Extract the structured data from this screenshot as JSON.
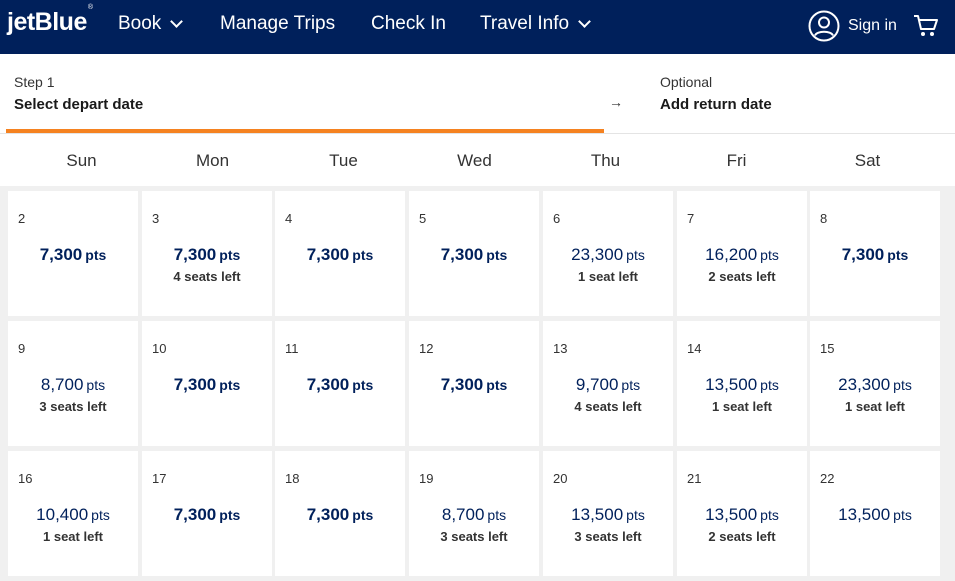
{
  "header": {
    "logo": "jetBlue",
    "logo_mark": "®",
    "nav": [
      {
        "label": "Book",
        "dropdown": true
      },
      {
        "label": "Manage Trips",
        "dropdown": false
      },
      {
        "label": "Check In",
        "dropdown": false
      },
      {
        "label": "Travel Info",
        "dropdown": true
      }
    ],
    "signin_label": "Sign in",
    "user_icon": "user-circle-icon",
    "cart_icon": "cart-icon"
  },
  "steps": {
    "depart_step": "Step 1",
    "depart_title": "Select depart date",
    "arrow": "→",
    "return_step": "Optional",
    "return_title": "Add return date",
    "accent_color": "#f58220"
  },
  "weekdays": [
    "Sun",
    "Mon",
    "Tue",
    "Wed",
    "Thu",
    "Fri",
    "Sat"
  ],
  "unit": "pts",
  "days": [
    {
      "day": "2",
      "price": "7,300",
      "seats": "",
      "best": true
    },
    {
      "day": "3",
      "price": "7,300",
      "seats": "4 seats left",
      "best": true
    },
    {
      "day": "4",
      "price": "7,300",
      "seats": "",
      "best": true
    },
    {
      "day": "5",
      "price": "7,300",
      "seats": "",
      "best": true
    },
    {
      "day": "6",
      "price": "23,300",
      "seats": "1 seat left",
      "best": false
    },
    {
      "day": "7",
      "price": "16,200",
      "seats": "2 seats left",
      "best": false
    },
    {
      "day": "8",
      "price": "7,300",
      "seats": "",
      "best": true
    },
    {
      "day": "9",
      "price": "8,700",
      "seats": "3 seats left",
      "best": false
    },
    {
      "day": "10",
      "price": "7,300",
      "seats": "",
      "best": true
    },
    {
      "day": "11",
      "price": "7,300",
      "seats": "",
      "best": true
    },
    {
      "day": "12",
      "price": "7,300",
      "seats": "",
      "best": true
    },
    {
      "day": "13",
      "price": "9,700",
      "seats": "4 seats left",
      "best": false
    },
    {
      "day": "14",
      "price": "13,500",
      "seats": "1 seat left",
      "best": false
    },
    {
      "day": "15",
      "price": "23,300",
      "seats": "1 seat left",
      "best": false
    },
    {
      "day": "16",
      "price": "10,400",
      "seats": "1 seat left",
      "best": false
    },
    {
      "day": "17",
      "price": "7,300",
      "seats": "",
      "best": true
    },
    {
      "day": "18",
      "price": "7,300",
      "seats": "",
      "best": true
    },
    {
      "day": "19",
      "price": "8,700",
      "seats": "3 seats left",
      "best": false
    },
    {
      "day": "20",
      "price": "13,500",
      "seats": "3 seats left",
      "best": false
    },
    {
      "day": "21",
      "price": "13,500",
      "seats": "2 seats left",
      "best": false
    },
    {
      "day": "22",
      "price": "13,500",
      "seats": "",
      "best": false
    }
  ]
}
